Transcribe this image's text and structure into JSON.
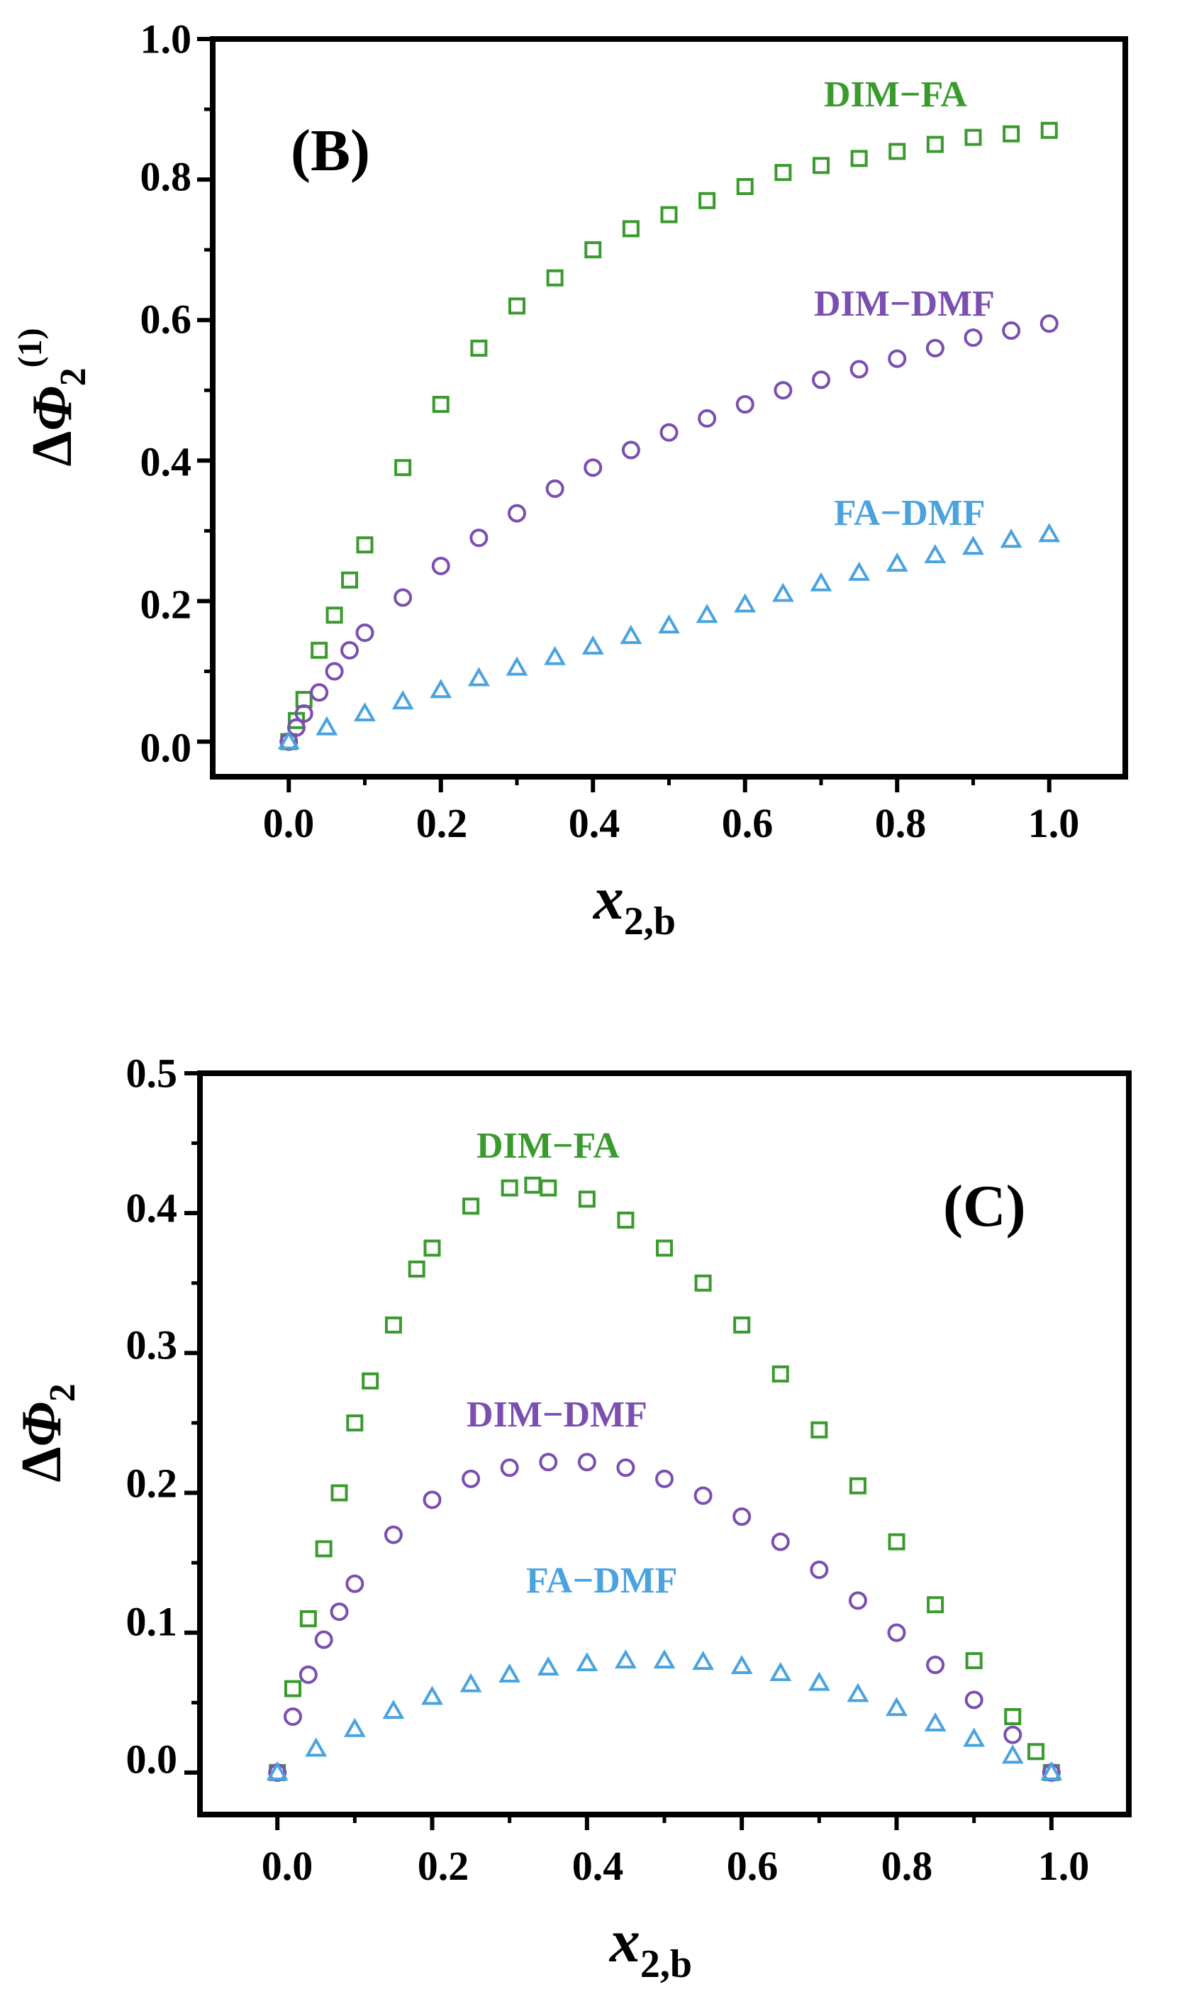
{
  "chart_data": [
    {
      "type": "scatter",
      "panel_label": "(B)",
      "xlabel": {
        "main": "x",
        "sub": "2,b"
      },
      "ylabel": {
        "prefix": "Δ",
        "main": "Φ",
        "sub": "2",
        "sup": "(1)"
      },
      "xlim": [
        -0.1,
        1.1
      ],
      "ylim": [
        -0.05,
        1.0
      ],
      "xticks": [
        0.0,
        0.2,
        0.4,
        0.6,
        0.8,
        1.0
      ],
      "xtick_labels": [
        "0.0",
        "0.2",
        "0.4",
        "0.6",
        "0.8",
        "1.0"
      ],
      "yticks": [
        0.0,
        0.2,
        0.4,
        0.6,
        0.8,
        1.0
      ],
      "ytick_labels": [
        "0.0",
        "0.2",
        "0.4",
        "0.6",
        "0.8",
        "1.0"
      ],
      "series": [
        {
          "name": "DIM−FA",
          "marker": "square",
          "color": "#3a9a2e",
          "x": [
            0.0,
            0.01,
            0.02,
            0.04,
            0.06,
            0.08,
            0.1,
            0.15,
            0.2,
            0.25,
            0.3,
            0.35,
            0.4,
            0.45,
            0.5,
            0.55,
            0.6,
            0.65,
            0.7,
            0.75,
            0.8,
            0.85,
            0.9,
            0.95,
            1.0
          ],
          "values": [
            0.0,
            0.03,
            0.06,
            0.13,
            0.18,
            0.23,
            0.28,
            0.39,
            0.48,
            0.56,
            0.62,
            0.66,
            0.7,
            0.73,
            0.75,
            0.77,
            0.79,
            0.81,
            0.82,
            0.83,
            0.84,
            0.85,
            0.86,
            0.865,
            0.87
          ]
        },
        {
          "name": "DIM−DMF",
          "marker": "circle",
          "color": "#7a4fb0",
          "x": [
            0.0,
            0.01,
            0.02,
            0.04,
            0.06,
            0.08,
            0.1,
            0.15,
            0.2,
            0.25,
            0.3,
            0.35,
            0.4,
            0.45,
            0.5,
            0.55,
            0.6,
            0.65,
            0.7,
            0.75,
            0.8,
            0.85,
            0.9,
            0.95,
            1.0
          ],
          "values": [
            0.0,
            0.02,
            0.04,
            0.07,
            0.1,
            0.13,
            0.155,
            0.205,
            0.25,
            0.29,
            0.325,
            0.36,
            0.39,
            0.415,
            0.44,
            0.46,
            0.48,
            0.5,
            0.515,
            0.53,
            0.545,
            0.56,
            0.575,
            0.585,
            0.595
          ]
        },
        {
          "name": "FA−DMF",
          "marker": "triangle",
          "color": "#4aa3df",
          "x": [
            0.0,
            0.05,
            0.1,
            0.15,
            0.2,
            0.25,
            0.3,
            0.35,
            0.4,
            0.45,
            0.5,
            0.55,
            0.6,
            0.65,
            0.7,
            0.75,
            0.8,
            0.85,
            0.9,
            0.95,
            1.0
          ],
          "values": [
            0.0,
            0.02,
            0.04,
            0.057,
            0.073,
            0.09,
            0.105,
            0.12,
            0.135,
            0.15,
            0.165,
            0.18,
            0.195,
            0.21,
            0.225,
            0.24,
            0.253,
            0.265,
            0.277,
            0.287,
            0.295
          ]
        }
      ]
    },
    {
      "type": "scatter",
      "panel_label": "(C)",
      "xlabel": {
        "main": "x",
        "sub": "2,b"
      },
      "ylabel": {
        "prefix": "Δ",
        "main": "Φ",
        "sub": "2",
        "sup": ""
      },
      "xlim": [
        -0.1,
        1.1
      ],
      "ylim": [
        -0.03,
        0.5
      ],
      "xticks": [
        0.0,
        0.2,
        0.4,
        0.6,
        0.8,
        1.0
      ],
      "xtick_labels": [
        "0.0",
        "0.2",
        "0.4",
        "0.6",
        "0.8",
        "1.0"
      ],
      "yticks": [
        0.0,
        0.1,
        0.2,
        0.3,
        0.4,
        0.5
      ],
      "ytick_labels": [
        "0.0",
        "0.1",
        "0.2",
        "0.3",
        "0.4",
        "0.5"
      ],
      "series": [
        {
          "name": "DIM−FA",
          "marker": "square",
          "color": "#3a9a2e",
          "x": [
            0.0,
            0.02,
            0.04,
            0.06,
            0.08,
            0.1,
            0.12,
            0.15,
            0.18,
            0.2,
            0.25,
            0.3,
            0.33,
            0.35,
            0.4,
            0.45,
            0.5,
            0.55,
            0.6,
            0.65,
            0.7,
            0.75,
            0.8,
            0.85,
            0.9,
            0.95,
            0.98,
            1.0
          ],
          "values": [
            0.0,
            0.06,
            0.11,
            0.16,
            0.2,
            0.25,
            0.28,
            0.32,
            0.36,
            0.375,
            0.405,
            0.418,
            0.42,
            0.418,
            0.41,
            0.395,
            0.375,
            0.35,
            0.32,
            0.285,
            0.245,
            0.205,
            0.165,
            0.12,
            0.08,
            0.04,
            0.015,
            0.0
          ]
        },
        {
          "name": "DIM−DMF",
          "marker": "circle",
          "color": "#7a4fb0",
          "x": [
            0.0,
            0.02,
            0.04,
            0.06,
            0.08,
            0.1,
            0.15,
            0.2,
            0.25,
            0.3,
            0.35,
            0.4,
            0.45,
            0.5,
            0.55,
            0.6,
            0.65,
            0.7,
            0.75,
            0.8,
            0.85,
            0.9,
            0.95,
            1.0
          ],
          "values": [
            0.0,
            0.04,
            0.07,
            0.095,
            0.115,
            0.135,
            0.17,
            0.195,
            0.21,
            0.218,
            0.222,
            0.222,
            0.218,
            0.21,
            0.198,
            0.183,
            0.165,
            0.145,
            0.123,
            0.1,
            0.077,
            0.052,
            0.027,
            0.0
          ]
        },
        {
          "name": "FA−DMF",
          "marker": "triangle",
          "color": "#4aa3df",
          "x": [
            0.0,
            0.05,
            0.1,
            0.15,
            0.2,
            0.25,
            0.3,
            0.35,
            0.4,
            0.45,
            0.5,
            0.55,
            0.6,
            0.65,
            0.7,
            0.75,
            0.8,
            0.85,
            0.9,
            0.95,
            1.0
          ],
          "values": [
            0.0,
            0.017,
            0.031,
            0.044,
            0.054,
            0.063,
            0.07,
            0.075,
            0.078,
            0.08,
            0.08,
            0.079,
            0.076,
            0.071,
            0.064,
            0.056,
            0.046,
            0.035,
            0.024,
            0.012,
            0.0
          ]
        }
      ]
    }
  ]
}
